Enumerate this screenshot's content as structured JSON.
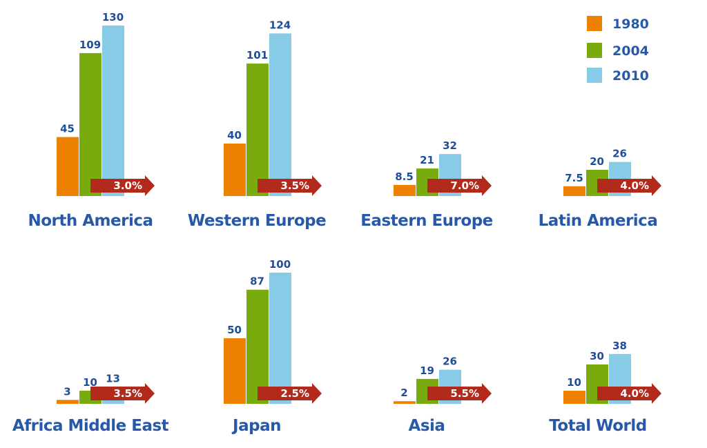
{
  "chart_data": {
    "type": "bar",
    "series": [
      {
        "name": "1980",
        "color": "#ee8200"
      },
      {
        "name": "2004",
        "color": "#7aab0e"
      },
      {
        "name": "2010",
        "color": "#87cbe6"
      }
    ],
    "growth_arrow_color": "#b22a1c",
    "panels": [
      {
        "region": "North America",
        "values": [
          45,
          109,
          130
        ],
        "labels": [
          "45",
          "109",
          "130"
        ],
        "growth": "3.0%"
      },
      {
        "region": "Western Europe",
        "values": [
          40,
          101,
          124
        ],
        "labels": [
          "40",
          "101",
          "124"
        ],
        "growth": "3.5%"
      },
      {
        "region": "Eastern Europe",
        "values": [
          8.5,
          21,
          32
        ],
        "labels": [
          "8.5",
          "21",
          "32"
        ],
        "growth": "7.0%"
      },
      {
        "region": "Latin America",
        "values": [
          7.5,
          20,
          26
        ],
        "labels": [
          "7.5",
          "20",
          "26"
        ],
        "growth": "4.0%"
      },
      {
        "region": "Africa Middle East",
        "values": [
          3,
          10,
          13
        ],
        "labels": [
          "3",
          "10",
          "13"
        ],
        "growth": "3.5%"
      },
      {
        "region": "Japan",
        "values": [
          50,
          87,
          100
        ],
        "labels": [
          "50",
          "87",
          "100"
        ],
        "growth": "2.5%"
      },
      {
        "region": "Asia",
        "values": [
          2,
          19,
          26
        ],
        "labels": [
          "2",
          "19",
          "26"
        ],
        "growth": "5.5%"
      },
      {
        "region": "Total World",
        "values": [
          10,
          30,
          38
        ],
        "labels": [
          "10",
          "30",
          "38"
        ],
        "growth": "4.0%"
      }
    ],
    "legend": {
      "position": "top-right",
      "entries": [
        "1980",
        "2004",
        "2010"
      ]
    },
    "grid": false
  }
}
